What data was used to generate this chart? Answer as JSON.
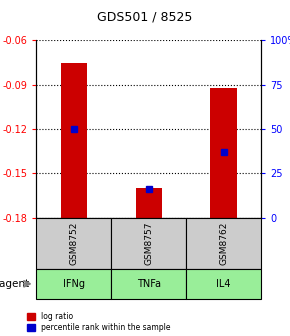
{
  "title": "GDS501 / 8525",
  "samples": [
    "GSM8752",
    "GSM8757",
    "GSM8762"
  ],
  "agents": [
    "IFNg",
    "TNFa",
    "IL4"
  ],
  "log_ratios": [
    -0.075,
    -0.16,
    -0.092
  ],
  "log_ratio_bottoms": [
    -0.18,
    -0.18,
    -0.18
  ],
  "percentile_ranks": [
    50,
    16,
    37
  ],
  "ylim_left": [
    -0.18,
    -0.06
  ],
  "ylim_right": [
    0,
    100
  ],
  "yticks_left": [
    -0.18,
    -0.15,
    -0.12,
    -0.09,
    -0.06
  ],
  "yticks_right": [
    0,
    25,
    50,
    75,
    100
  ],
  "ytick_labels_left": [
    "-0.18",
    "-0.15",
    "-0.12",
    "-0.09",
    "-0.06"
  ],
  "ytick_labels_right": [
    "0",
    "25",
    "50",
    "75",
    "100%"
  ],
  "bar_color": "#cc0000",
  "percentile_color": "#0000cc",
  "agent_color": "#99ee99",
  "sample_color": "#cccccc",
  "bar_width": 0.35,
  "agent_row_label": "agent"
}
